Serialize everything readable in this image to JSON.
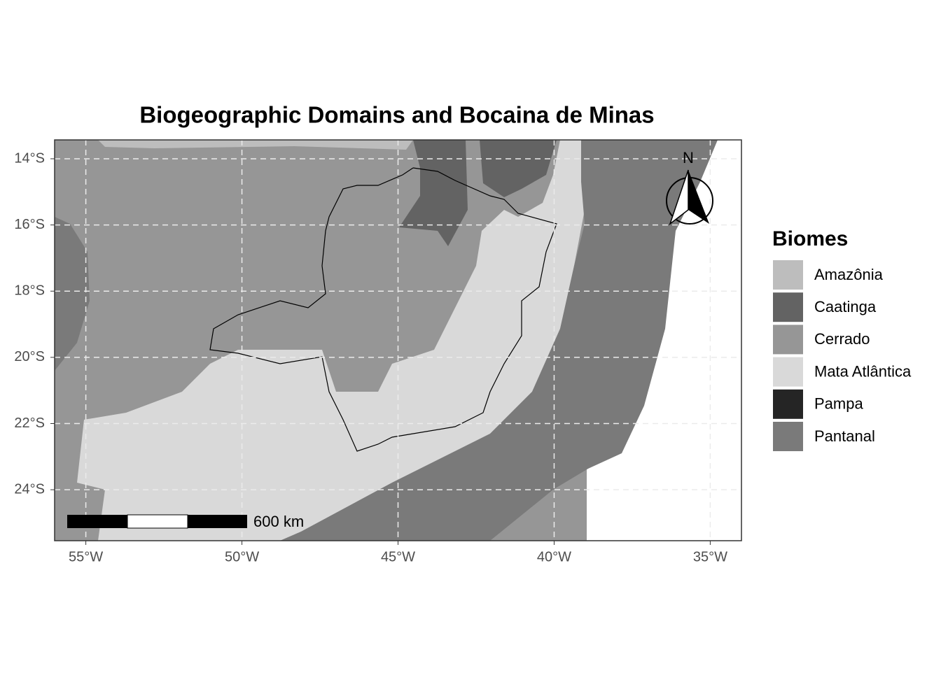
{
  "map": {
    "title": "Biogeographic Domains and Bocaina de Minas",
    "xlim": [
      -56,
      -34
    ],
    "ylim": [
      -25.54,
      -13.43
    ],
    "xticks": [
      {
        "value": -55,
        "label": "55°W"
      },
      {
        "value": -50,
        "label": "50°W"
      },
      {
        "value": -45,
        "label": "45°W"
      },
      {
        "value": -40,
        "label": "40°W"
      },
      {
        "value": -35,
        "label": "35°W"
      }
    ],
    "yticks": [
      {
        "value": -14,
        "label": "14°S"
      },
      {
        "value": -16,
        "label": "16°S"
      },
      {
        "value": -18,
        "label": "18°S"
      },
      {
        "value": -20,
        "label": "20°S"
      },
      {
        "value": -22,
        "label": "22°S"
      },
      {
        "value": -24,
        "label": "24°S"
      }
    ],
    "grid": true,
    "legend": {
      "title": "Biomes",
      "items": [
        {
          "name": "Amazônia",
          "color": "#bdbdbd"
        },
        {
          "name": "Caatinga",
          "color": "#636363"
        },
        {
          "name": "Cerrado",
          "color": "#969696"
        },
        {
          "name": "Mata Atlântica",
          "color": "#d9d9d9"
        },
        {
          "name": "Pampa",
          "color": "#252525"
        },
        {
          "name": "Pantanal",
          "color": "#7a7a7a"
        }
      ]
    },
    "scale_bar": {
      "label": "600 km"
    },
    "north_label": "N"
  }
}
